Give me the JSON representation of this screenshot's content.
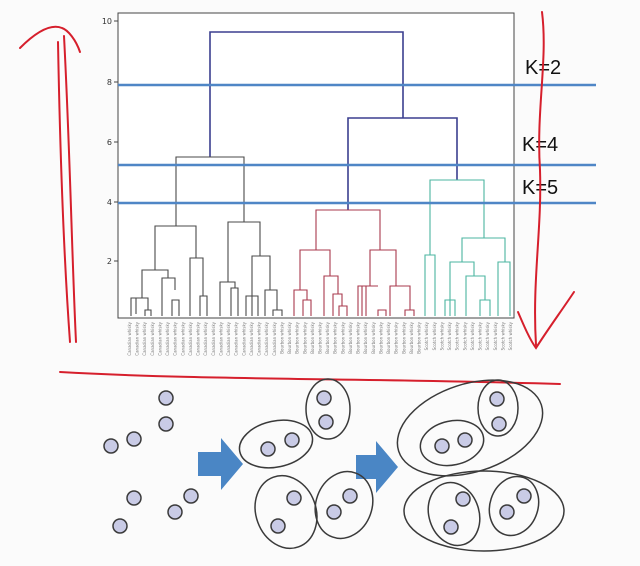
{
  "dendrogram": {
    "yticks": [
      "2",
      "4",
      "6",
      "8",
      "10"
    ],
    "ytick_values": [
      2,
      4,
      6,
      8,
      10
    ],
    "ylim": [
      0,
      10
    ],
    "cut_lines": [
      {
        "label": "K=2",
        "height": 7.9
      },
      {
        "label": "K=4",
        "height": 5.2
      },
      {
        "label": "K=5",
        "height": 3.9
      }
    ],
    "leaf_labels": [
      "Canadian whisky",
      "Canadian whisky",
      "Canadian whisky",
      "Canadian whisky",
      "Canadian whisky",
      "Canadian whisky",
      "Canadian whisky",
      "Canadian whisky",
      "Canadian whisky",
      "Canadian whisky",
      "Canadian whisky",
      "Canadian whisky",
      "Canadian whisky",
      "Canadian whisky",
      "Canadian whisky",
      "Canadian whisky",
      "Canadian whisky",
      "Canadian whisky",
      "Canadian whisky",
      "Canadian whisky",
      "Bourbon whisky",
      "Bourbon whisky",
      "Bourbon whisky",
      "Bourbon whisky",
      "Bourbon whisky",
      "Bourbon whisky",
      "Bourbon whisky",
      "Bourbon whisky",
      "Bourbon whisky",
      "Bourbon whisky",
      "Bourbon whisky",
      "Bourbon whisky",
      "Bourbon whisky",
      "Bourbon whisky",
      "Bourbon whisky",
      "Bourbon whisky",
      "Bourbon whisky",
      "Bourbon whisky",
      "Bourbon whisky",
      "Scotch whisky",
      "Scotch whisky",
      "Scotch whisky",
      "Scotch whisky",
      "Scotch whisky",
      "Scotch whisky",
      "Scotch whisky",
      "Scotch whisky",
      "Scotch whisky",
      "Scotch whisky",
      "Scotch whisky",
      "Scotch whisky"
    ],
    "colors": {
      "top": "#3b3f8f",
      "cluster_a": "#4a4a4a",
      "cluster_b": "#a83a4d",
      "cluster_c": "#4bb5a0",
      "cut_line": "#4f86c6",
      "annotation": "#d61f2c"
    }
  },
  "illustration": {
    "stage_labels": [],
    "arrow_color": "#4a86c5",
    "point_fill": "#c9cbe6",
    "point_stroke": "#3a3a3a"
  }
}
